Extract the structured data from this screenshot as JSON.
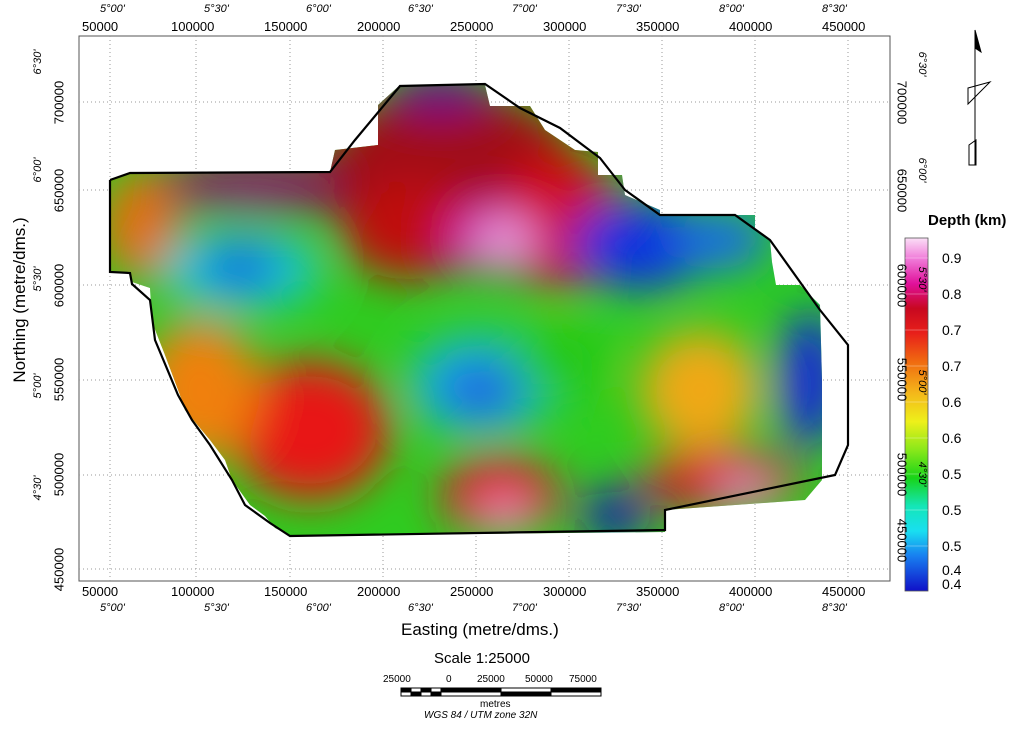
{
  "map": {
    "x_axis_title": "Easting (metre/dms.)",
    "y_axis_title": "Northing (metre/dms.)",
    "eastings": [
      "50000",
      "100000",
      "150000",
      "200000",
      "250000",
      "300000",
      "350000",
      "400000",
      "450000"
    ],
    "eastings_dms": [
      "5°00'",
      "5°30'",
      "6°00'",
      "6°30'",
      "7°00'",
      "7°30'",
      "8°00'",
      "8°30'"
    ],
    "northings": [
      "450000",
      "500000",
      "550000",
      "600000",
      "650000",
      "700000"
    ],
    "northings_dms_left": [
      "4°30'",
      "5°00'",
      "5°30'",
      "6°00'",
      "6°30'"
    ],
    "northings_dms_right": [
      "4°30'",
      "5°00'",
      "5°30'",
      "6°00'",
      "6°30'"
    ],
    "scale_title": "Scale 1:25000",
    "scale_ticks": [
      "25000",
      "0",
      "25000",
      "50000",
      "75000"
    ],
    "scale_units": "metres",
    "projection": "WGS 84 / UTM zone 32N"
  },
  "legend": {
    "title": "Depth (km)",
    "labels": [
      "0.9",
      "0.8",
      "0.7",
      "0.7",
      "0.6",
      "0.6",
      "0.5",
      "0.5",
      "0.5",
      "0.4",
      "0.4"
    ],
    "colors": {
      "top": "#f7c8f0",
      "magenta": "#e01ab0",
      "red": "#e4101a",
      "orange": "#f08a10",
      "yellow": "#f2e81a",
      "green": "#2ecf1a",
      "cyan": "#19e6e6",
      "blue": "#1a3cf0",
      "navy": "#1010c0"
    }
  }
}
